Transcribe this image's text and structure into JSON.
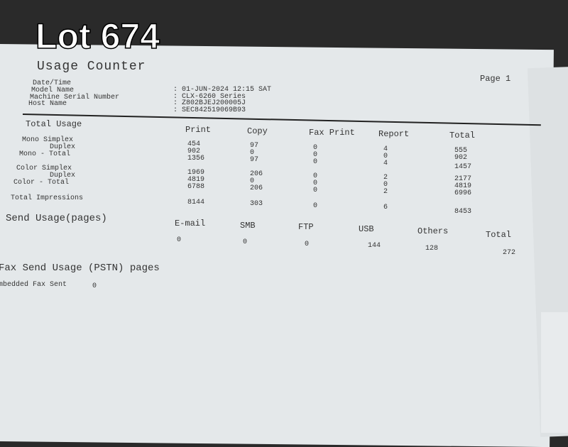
{
  "watermark": "Lot 674",
  "report": {
    "title": "Usage Counter",
    "page": "Page 1",
    "info": [
      {
        "label": "Date/Time",
        "value": ": 01-JUN-2024 12:15 SAT"
      },
      {
        "label": "Model Name",
        "value": ": CLX-6260 Series"
      },
      {
        "label": "Machine Serial Number",
        "value": ": Z802BJEJ200005J"
      },
      {
        "label": "Host Name",
        "value": ": SEC842519069B93"
      }
    ],
    "total_usage": {
      "heading": "Total Usage",
      "columns": [
        "Print",
        "Copy",
        "Fax Print",
        "Report",
        "Total"
      ],
      "row_labels": [
        "Mono Simplex",
        "Duplex",
        "Mono - Total",
        "Color Simplex",
        "Duplex",
        "Color - Total",
        "Total Impressions"
      ],
      "print": [
        "454",
        "902",
        "1356",
        "1969",
        "4819",
        "6788",
        "8144"
      ],
      "copy": [
        "97",
        "0",
        "97",
        "206",
        "0",
        "206",
        "303"
      ],
      "fax_print": [
        "0",
        "0",
        "0",
        "0",
        "0",
        "0",
        "0"
      ],
      "report": [
        "4",
        "0",
        "4",
        "2",
        "0",
        "2",
        "6"
      ],
      "total": [
        "555",
        "902",
        "1457",
        "2177",
        "4819",
        "6996",
        "8453"
      ]
    },
    "send_usage": {
      "heading": "Send Usage(pages)",
      "columns": [
        "E-mail",
        "SMB",
        "FTP",
        "USB",
        "Others",
        "Total"
      ],
      "values": [
        "0",
        "0",
        "0",
        "144",
        "128",
        "272"
      ]
    },
    "fax_send": {
      "heading": "Fax Send Usage (PSTN) pages",
      "label": "mbedded Fax Sent",
      "value": "0"
    }
  }
}
